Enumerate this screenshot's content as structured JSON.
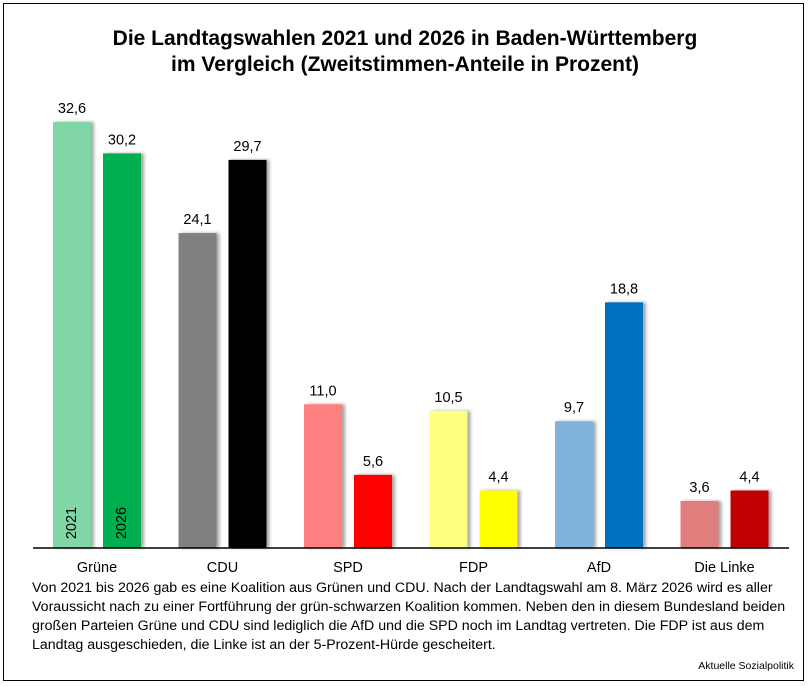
{
  "title_lines": [
    "Die Landtagswahlen 2021 und 2026 in Baden-Württemberg",
    "im Vergleich (Zweitstimmen-Anteile in Prozent)"
  ],
  "chart_data": {
    "type": "bar",
    "title": "Die Landtagswahlen 2021 und 2026 in Baden-Württemberg im Vergleich (Zweitstimmen-Anteile in Prozent)",
    "xlabel": "",
    "ylabel": "",
    "ylim": [
      0,
      32.6
    ],
    "grid": false,
    "legend": "inside-first-bars (2021, 2026 rotated labels)",
    "categories": [
      "Grüne",
      "CDU",
      "SPD",
      "FDP",
      "AfD",
      "Die Linke"
    ],
    "series": [
      {
        "name": "2021",
        "values": [
          32.6,
          24.1,
          11.0,
          10.5,
          9.7,
          3.6
        ],
        "labels": [
          "32,6",
          "24,1",
          "11,0",
          "10,5",
          "9,7",
          "3,6"
        ],
        "colors": [
          "#80d6a6",
          "#808080",
          "#ff8080",
          "#ffff80",
          "#7fb2dc",
          "#e07d7d"
        ]
      },
      {
        "name": "2026",
        "values": [
          30.2,
          29.7,
          5.6,
          4.4,
          18.8,
          4.4
        ],
        "labels": [
          "30,2",
          "29,7",
          "5,6",
          "4,4",
          "18,8",
          "4,4"
        ],
        "colors": [
          "#00af50",
          "#000000",
          "#ff0000",
          "#ffff00",
          "#0070c0",
          "#c00000"
        ]
      }
    ]
  },
  "note": "Von 2021 bis 2026 gab es eine Koalition aus Grünen und CDU. Nach der Landtagswahl am 8. März 2026 wird es aller Voraussicht nach zu einer Fortführung der grün-schwarzen Koalition kommen. Neben den in diesem Bundesland beiden großen Parteien Grüne und CDU sind lediglich die AfD und die SPD noch im Landtag vertreten. Die FDP ist aus dem Landtag ausgeschieden, die Linke ist an der 5-Prozent-Hürde gescheitert.",
  "source": "Aktuelle Sozialpolitik"
}
